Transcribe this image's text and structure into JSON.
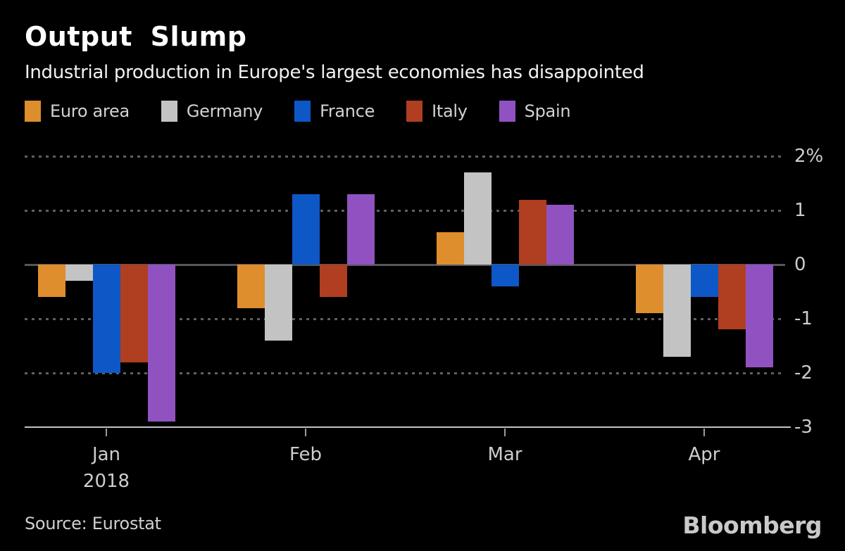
{
  "chart_data": {
    "type": "bar",
    "title": "Output Slump",
    "subtitle": "Industrial production in Europe's largest economies has disappointed",
    "categories": [
      "Jan",
      "Feb",
      "Mar",
      "Apr"
    ],
    "x_axis_year": "2018",
    "unit": "%",
    "series": [
      {
        "name": "Euro area",
        "color": "#DE8E2D",
        "values": [
          -0.6,
          -0.8,
          0.6,
          -0.9
        ]
      },
      {
        "name": "Germany",
        "color": "#C3C3C3",
        "values": [
          -0.3,
          -1.4,
          1.7,
          -1.7
        ]
      },
      {
        "name": "France",
        "color": "#0E57C6",
        "values": [
          -2.0,
          1.3,
          -0.4,
          -0.6
        ]
      },
      {
        "name": "Italy",
        "color": "#B03E20",
        "values": [
          -1.8,
          -0.6,
          1.2,
          -1.2
        ]
      },
      {
        "name": "Spain",
        "color": "#9152C1",
        "values": [
          -2.9,
          1.3,
          1.1,
          -1.9
        ]
      }
    ],
    "ylim": [
      -3,
      2
    ],
    "yticks": [
      {
        "value": 2,
        "label": "2%"
      },
      {
        "value": 1,
        "label": "1"
      },
      {
        "value": 0,
        "label": "0"
      },
      {
        "value": -1,
        "label": "-1"
      },
      {
        "value": -2,
        "label": "-2"
      },
      {
        "value": -3,
        "label": "-3"
      }
    ],
    "grid": "horizontal-dotted",
    "legend_position": "top-left"
  },
  "footer": {
    "source": "Source: Eurostat",
    "brand": "Bloomberg"
  },
  "colors": {
    "background": "#000000",
    "title_text": "#FFFFFF",
    "axis_text": "#CDCDCD",
    "gridline": "#5F5F5F",
    "zero_line": "#55555A",
    "axis_line": "#C2C2C2"
  }
}
